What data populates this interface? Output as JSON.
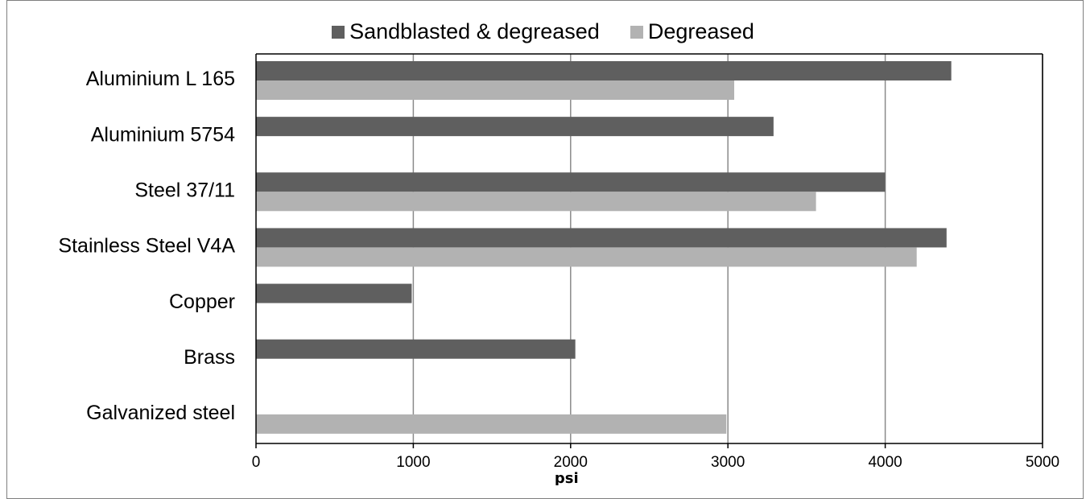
{
  "chart_data": {
    "type": "bar",
    "orientation": "horizontal",
    "categories": [
      "Aluminium L 165",
      "Aluminium 5754",
      "Steel 37/11",
      "Stainless Steel V4A",
      "Copper",
      "Brass",
      "Galvanized steel"
    ],
    "series": [
      {
        "name": "Sandblasted & degreased",
        "color": "#5f5f5f",
        "values": [
          4420,
          3290,
          4000,
          4390,
          990,
          2030,
          null
        ]
      },
      {
        "name": "Degreased",
        "color": "#b2b2b2",
        "values": [
          3040,
          null,
          3560,
          4200,
          null,
          null,
          2990
        ]
      }
    ],
    "xlabel": "psi",
    "xlim": [
      0,
      5000
    ],
    "xticks": [
      0,
      1000,
      2000,
      3000,
      4000,
      5000
    ],
    "grid": "vertical",
    "legend_position": "top"
  }
}
